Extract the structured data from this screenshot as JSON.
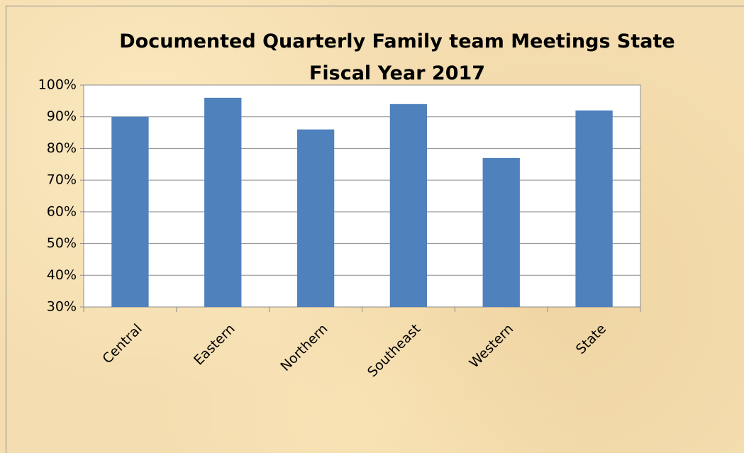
{
  "chart_data": {
    "type": "bar",
    "title": "Documented Quarterly Family team Meetings State Fiscal Year 2017",
    "categories": [
      "Central",
      "Eastern",
      "Northern",
      "Southeast",
      "Western",
      "State"
    ],
    "values": [
      90,
      96,
      86,
      94,
      77,
      92
    ],
    "color": "#4f81bd",
    "ylim": [
      30,
      100
    ],
    "yticks": [
      {
        "value": 30,
        "label": "30%"
      },
      {
        "value": 40,
        "label": "40%"
      },
      {
        "value": 50,
        "label": "50%"
      },
      {
        "value": 60,
        "label": "60%"
      },
      {
        "value": 70,
        "label": "70%"
      },
      {
        "value": 80,
        "label": "80%"
      },
      {
        "value": 90,
        "label": "90%"
      },
      {
        "value": 100,
        "label": "100%"
      }
    ],
    "grid": true
  }
}
